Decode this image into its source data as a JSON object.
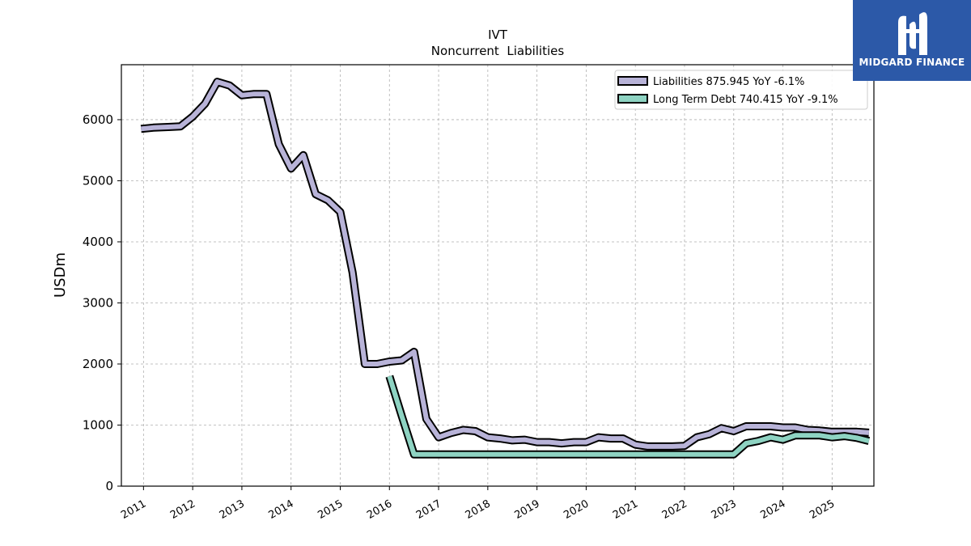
{
  "chart_data": {
    "type": "line",
    "title": "IVT",
    "subtitle": "Noncurrent  Liabilities",
    "xlabel": "",
    "ylabel": "USDm",
    "ylim": [
      0,
      6900
    ],
    "xlim": [
      2009.55,
      2024.85
    ],
    "yticks": [
      0,
      1000,
      2000,
      3000,
      4000,
      5000,
      6000
    ],
    "xticks": [
      "2011",
      "2012",
      "2013",
      "2014",
      "2015",
      "2016",
      "2017",
      "2018",
      "2019",
      "2020",
      "2021",
      "2022",
      "2023",
      "2024",
      "2025"
    ],
    "grid": true,
    "legend_position": "top-right",
    "series": [
      {
        "name": "Liabilities",
        "legend_label": "Liabilities  875.945 YoY -6.1%",
        "color": "#b8b3d8",
        "x": [
          2009.95,
          2010.2,
          2010.5,
          2010.75,
          2011.0,
          2011.25,
          2011.5,
          2011.75,
          2012.0,
          2012.25,
          2012.5,
          2012.75,
          2013.0,
          2013.25,
          2013.5,
          2013.75,
          2014.0,
          2014.25,
          2014.5,
          2014.75,
          2015.0,
          2015.25,
          2015.5,
          2015.75,
          2016.0,
          2016.25,
          2016.5,
          2016.75,
          2017.0,
          2017.25,
          2017.5,
          2017.75,
          2018.0,
          2018.25,
          2018.5,
          2018.75,
          2019.0,
          2019.25,
          2019.5,
          2019.75,
          2020.0,
          2020.25,
          2020.5,
          2020.75,
          2021.0,
          2021.25,
          2021.5,
          2021.75,
          2022.0,
          2022.25,
          2022.5,
          2022.75,
          2023.0,
          2023.25,
          2023.5,
          2023.75,
          2024.0,
          2024.25,
          2024.5,
          2024.75
        ],
        "values": [
          5850,
          5870,
          5880,
          5890,
          6050,
          6260,
          6620,
          6560,
          6400,
          6420,
          6420,
          5600,
          5200,
          5420,
          4780,
          4680,
          4490,
          3500,
          2000,
          2000,
          2040,
          2060,
          2200,
          1100,
          800,
          870,
          920,
          900,
          800,
          780,
          750,
          760,
          720,
          720,
          700,
          720,
          720,
          800,
          780,
          780,
          680,
          650,
          650,
          650,
          660,
          800,
          850,
          950,
          900,
          980,
          980,
          980,
          960,
          960,
          920,
          910,
          890,
          890,
          890,
          876
        ]
      },
      {
        "name": "Long Term Debt",
        "legend_label": "Long Term Debt  740.415 YoY -9.1%",
        "color": "#8ed3c2",
        "x": [
          2015.0,
          2015.25,
          2015.5,
          2015.75,
          2016.0,
          2016.25,
          2016.5,
          2016.75,
          2017.0,
          2017.25,
          2017.5,
          2017.75,
          2018.0,
          2018.25,
          2018.5,
          2018.75,
          2019.0,
          2019.25,
          2019.5,
          2019.75,
          2020.0,
          2020.25,
          2020.5,
          2020.75,
          2021.0,
          2021.25,
          2021.5,
          2021.75,
          2022.0,
          2022.25,
          2022.5,
          2022.75,
          2023.0,
          2023.25,
          2023.5,
          2023.75,
          2024.0,
          2024.25,
          2024.5,
          2024.75
        ],
        "values": [
          1800,
          1150,
          520,
          520,
          520,
          520,
          520,
          520,
          520,
          520,
          520,
          520,
          520,
          520,
          520,
          520,
          520,
          520,
          520,
          520,
          520,
          520,
          520,
          520,
          520,
          520,
          520,
          520,
          520,
          700,
          740,
          800,
          760,
          830,
          830,
          830,
          800,
          820,
          790,
          740
        ]
      }
    ]
  },
  "logo": {
    "text": "MIDGARD FINANCE",
    "bg_color": "#2c59a8"
  }
}
